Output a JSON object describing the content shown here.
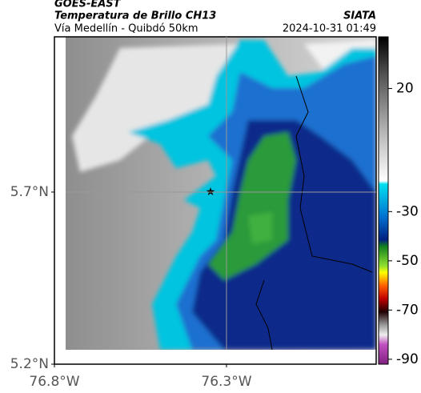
{
  "header": {
    "source": "GOES-EAST",
    "product": "Temperatura de Brillo CH13",
    "route": "Vía Medellín - Quibdó 50km",
    "agency": "SIATA",
    "timestamp": "2024-10-31 01:49"
  },
  "map": {
    "xlim": [
      -76.8,
      -75.865
    ],
    "ylim": [
      5.2,
      6.151
    ],
    "xticks": [
      {
        "value": -76.8,
        "label": "76.8°W"
      },
      {
        "value": -76.3,
        "label": "76.3°W"
      }
    ],
    "yticks": [
      {
        "value": 5.7,
        "label": "5.7°N"
      },
      {
        "value": 5.2,
        "label": "5.2°N"
      }
    ]
  },
  "colorbar": {
    "lim": [
      -92,
      41
    ],
    "ticks": [
      20,
      -30,
      -50,
      -70,
      -90
    ]
  }
}
